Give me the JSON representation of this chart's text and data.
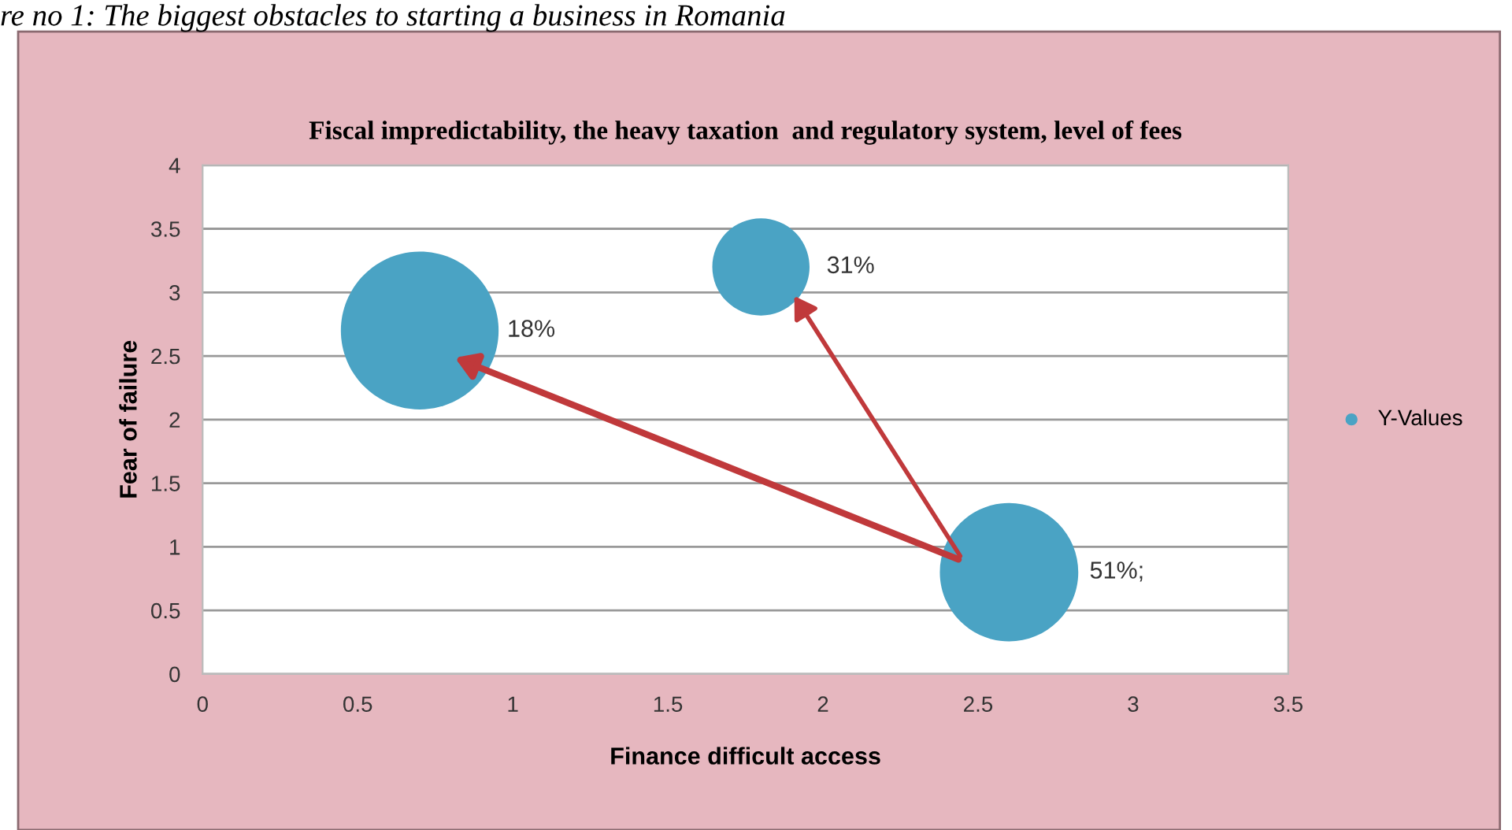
{
  "chart_data": {
    "type": "bubble",
    "title": "Fiscal impredictability, the heavy taxation  and regulatory system, level of fees",
    "xlabel": "Finance difficult access",
    "ylabel": "Fear of failure",
    "x": [
      0.7,
      1.8,
      2.6
    ],
    "series": [
      {
        "name": "Y-Values",
        "color": "#4aa3c4",
        "values": [
          2.7,
          3.2,
          0.8
        ],
        "sizes": [
          1,
          0.38,
          0.77
        ]
      }
    ],
    "xlim": [
      0,
      3.5
    ],
    "xticks": [
      0,
      0.5,
      1,
      1.5,
      2,
      2.5,
      3,
      3.5
    ],
    "ylim": [
      0,
      4
    ],
    "yticks": [
      0,
      0.5,
      1,
      1.5,
      2,
      2.5,
      3,
      3.5,
      4
    ],
    "grid": "y",
    "legend": "right",
    "annotations": [
      "re no 1: The biggest obstacles to starting a business in Romania",
      "18%",
      "31%",
      "51%;"
    ]
  }
}
